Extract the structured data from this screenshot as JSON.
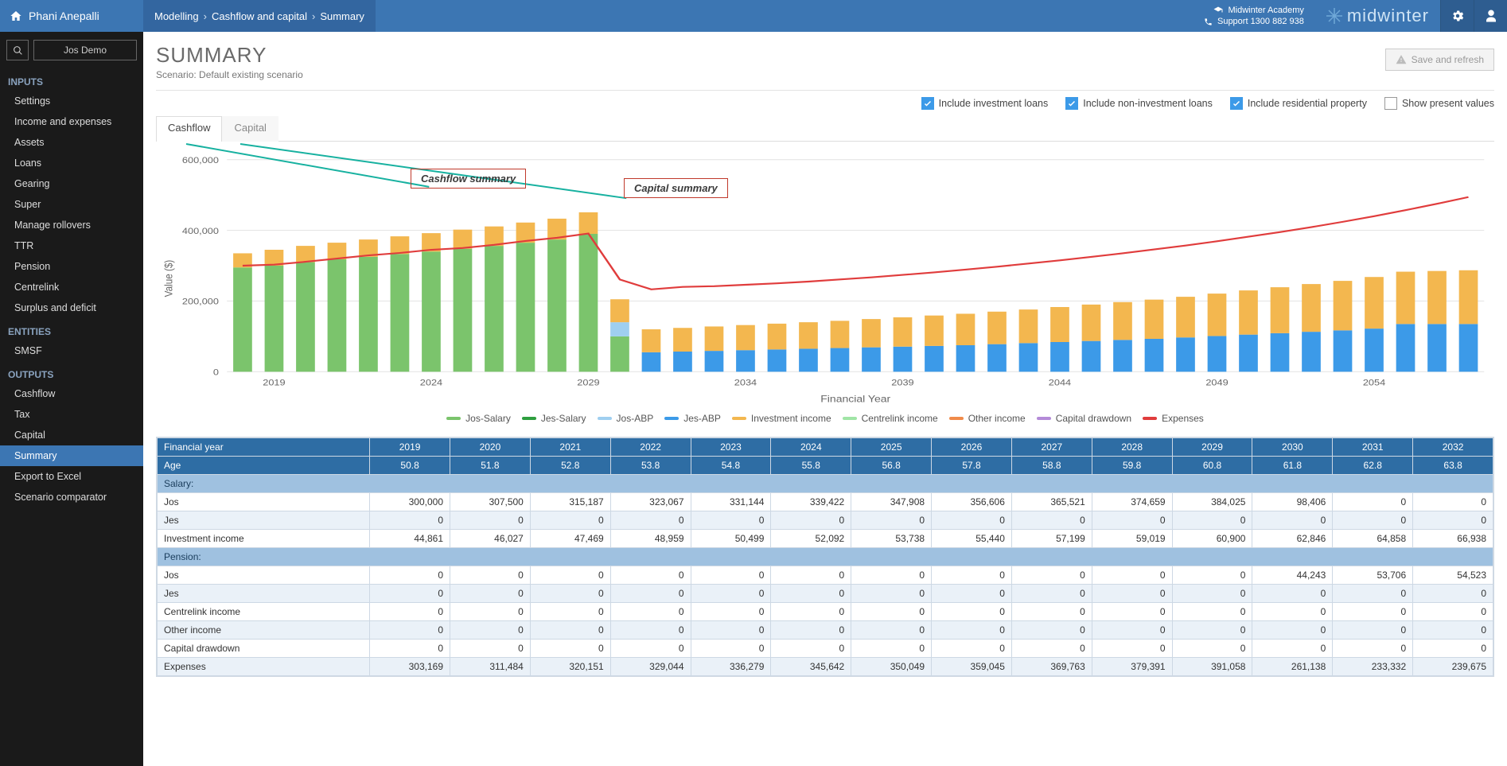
{
  "header": {
    "username": "Phani Anepalli",
    "breadcrumb": [
      "Modelling",
      "Cashflow and capital",
      "Summary"
    ],
    "academy": "Midwinter Academy",
    "support": "Support 1300 882 938",
    "brand": "midwinter"
  },
  "client": {
    "name": "Jos Demo"
  },
  "nav": {
    "sections": [
      {
        "title": "INPUTS",
        "items": [
          "Settings",
          "Income and expenses",
          "Assets",
          "Loans",
          "Gearing",
          "Super",
          "Manage rollovers",
          "TTR",
          "Pension",
          "Centrelink",
          "Surplus and deficit"
        ]
      },
      {
        "title": "ENTITIES",
        "items": [
          "SMSF"
        ]
      },
      {
        "title": "OUTPUTS",
        "items": [
          "Cashflow",
          "Tax",
          "Capital",
          "Summary",
          "Export to Excel",
          "Scenario comparator"
        ]
      }
    ],
    "active": "Summary"
  },
  "page": {
    "title": "SUMMARY",
    "scenario_label": "Scenario: Default existing scenario",
    "save_btn": "Save and refresh"
  },
  "checks": [
    {
      "label": "Include investment loans",
      "on": true
    },
    {
      "label": "Include non-investment loans",
      "on": true
    },
    {
      "label": "Include residential property",
      "on": true
    },
    {
      "label": "Show present values",
      "on": false
    }
  ],
  "tabs": {
    "items": [
      "Cashflow",
      "Capital"
    ],
    "active": "Cashflow"
  },
  "callouts": {
    "c1": "Cashflow summary",
    "c2": "Capital summary"
  },
  "chart": {
    "type": "stacked-bar-with-line",
    "ylabel": "Value ($)",
    "xlabel": "Financial Year",
    "ylim": [
      0,
      600000
    ],
    "ytick_step": 200000,
    "ytick_labels": [
      "0",
      "200,000",
      "400,000",
      "600,000"
    ],
    "years": [
      2018,
      2019,
      2020,
      2021,
      2022,
      2023,
      2024,
      2025,
      2026,
      2027,
      2028,
      2029,
      2030,
      2031,
      2032,
      2033,
      2034,
      2035,
      2036,
      2037,
      2038,
      2039,
      2040,
      2041,
      2042,
      2043,
      2044,
      2045,
      2046,
      2047,
      2048,
      2049,
      2050,
      2051,
      2052,
      2053,
      2054,
      2055,
      2056,
      2057
    ],
    "xticks": [
      2019,
      2024,
      2029,
      2034,
      2039,
      2044,
      2049,
      2054
    ],
    "colors": {
      "jos_salary": "#7bc46c",
      "jes_salary": "#2e9e3f",
      "jos_abp": "#9fcff0",
      "jes_abp": "#3c9ae8",
      "investment": "#f3b74f",
      "centrelink": "#a0e5a6",
      "other": "#f08b4a",
      "capital_drawdown": "#b48bd8",
      "expenses": "#e03c3c",
      "grid": "#e6e6e6",
      "axis": "#888"
    },
    "legend": [
      "Jos-Salary",
      "Jes-Salary",
      "Jos-ABP",
      "Jes-ABP",
      "Investment income",
      "Centrelink income",
      "Other income",
      "Capital drawdown",
      "Expenses"
    ],
    "legend_colors": [
      "#7bc46c",
      "#2e9e3f",
      "#9fcff0",
      "#3c9ae8",
      "#f3b74f",
      "#a0e5a6",
      "#f08b4a",
      "#b48bd8",
      "#e03c3c"
    ],
    "series": {
      "green": [
        295000,
        300000,
        310000,
        318000,
        325000,
        333000,
        340000,
        348000,
        356000,
        365000,
        374000,
        390000,
        100000,
        0,
        0,
        0,
        0,
        0,
        0,
        0,
        0,
        0,
        0,
        0,
        0,
        0,
        0,
        0,
        0,
        0,
        0,
        0,
        0,
        0,
        0,
        0,
        0,
        0,
        0,
        0
      ],
      "lightblue": [
        0,
        0,
        0,
        0,
        0,
        0,
        0,
        0,
        0,
        0,
        0,
        0,
        40000,
        0,
        0,
        0,
        0,
        0,
        0,
        0,
        0,
        0,
        0,
        0,
        0,
        0,
        0,
        0,
        0,
        0,
        0,
        0,
        0,
        0,
        0,
        0,
        0,
        0,
        0,
        0
      ],
      "blue": [
        0,
        0,
        0,
        0,
        0,
        0,
        0,
        0,
        0,
        0,
        0,
        0,
        0,
        55000,
        57000,
        59000,
        61000,
        63000,
        65000,
        67000,
        69000,
        71000,
        73000,
        75000,
        78000,
        81000,
        84000,
        87000,
        90000,
        93000,
        97000,
        101000,
        105000,
        109000,
        113000,
        117000,
        122000,
        135000,
        135000,
        135000
      ],
      "orange": [
        40000,
        45000,
        46000,
        47000,
        49000,
        50000,
        52000,
        54000,
        55000,
        57000,
        59000,
        61000,
        65000,
        65000,
        67000,
        69000,
        71000,
        73000,
        75000,
        77000,
        80000,
        83000,
        86000,
        89000,
        92000,
        95000,
        99000,
        103000,
        107000,
        111000,
        115000,
        120000,
        125000,
        130000,
        135000,
        140000,
        146000,
        148000,
        150000,
        152000
      ]
    },
    "expenses_line": [
      300000,
      303000,
      311000,
      320000,
      329000,
      336000,
      345000,
      350000,
      359000,
      370000,
      379000,
      391000,
      261000,
      233000,
      240000,
      242000,
      246000,
      250000,
      255000,
      261000,
      267000,
      274000,
      281000,
      289000,
      297000,
      306000,
      315000,
      325000,
      335000,
      346000,
      357000,
      369000,
      382000,
      395000,
      409000,
      424000,
      440000,
      457000,
      475000,
      494000
    ]
  },
  "table": {
    "header1_label": "Financial year",
    "header2_label": "Age",
    "years": [
      "2019",
      "2020",
      "2021",
      "2022",
      "2023",
      "2024",
      "2025",
      "2026",
      "2027",
      "2028",
      "2029",
      "2030",
      "2031",
      "2032"
    ],
    "ages": [
      "50.8",
      "51.8",
      "52.8",
      "53.8",
      "54.8",
      "55.8",
      "56.8",
      "57.8",
      "58.8",
      "59.8",
      "60.8",
      "61.8",
      "62.8",
      "63.8"
    ],
    "sections": [
      {
        "title": "Salary:",
        "rows": [
          {
            "label": "Jos",
            "vals": [
              "300,000",
              "307,500",
              "315,187",
              "323,067",
              "331,144",
              "339,422",
              "347,908",
              "356,606",
              "365,521",
              "374,659",
              "384,025",
              "98,406",
              "0",
              "0"
            ]
          },
          {
            "label": "Jes",
            "vals": [
              "0",
              "0",
              "0",
              "0",
              "0",
              "0",
              "0",
              "0",
              "0",
              "0",
              "0",
              "0",
              "0",
              "0"
            ]
          },
          {
            "label": "Investment income",
            "vals": [
              "44,861",
              "46,027",
              "47,469",
              "48,959",
              "50,499",
              "52,092",
              "53,738",
              "55,440",
              "57,199",
              "59,019",
              "60,900",
              "62,846",
              "64,858",
              "66,938"
            ]
          }
        ]
      },
      {
        "title": "Pension:",
        "rows": [
          {
            "label": "Jos",
            "vals": [
              "0",
              "0",
              "0",
              "0",
              "0",
              "0",
              "0",
              "0",
              "0",
              "0",
              "0",
              "44,243",
              "53,706",
              "54,523"
            ]
          },
          {
            "label": "Jes",
            "vals": [
              "0",
              "0",
              "0",
              "0",
              "0",
              "0",
              "0",
              "0",
              "0",
              "0",
              "0",
              "0",
              "0",
              "0"
            ]
          },
          {
            "label": "Centrelink income",
            "vals": [
              "0",
              "0",
              "0",
              "0",
              "0",
              "0",
              "0",
              "0",
              "0",
              "0",
              "0",
              "0",
              "0",
              "0"
            ]
          },
          {
            "label": "Other income",
            "vals": [
              "0",
              "0",
              "0",
              "0",
              "0",
              "0",
              "0",
              "0",
              "0",
              "0",
              "0",
              "0",
              "0",
              "0"
            ]
          },
          {
            "label": "Capital drawdown",
            "vals": [
              "0",
              "0",
              "0",
              "0",
              "0",
              "0",
              "0",
              "0",
              "0",
              "0",
              "0",
              "0",
              "0",
              "0"
            ]
          },
          {
            "label": "Expenses",
            "vals": [
              "303,169",
              "311,484",
              "320,151",
              "329,044",
              "336,279",
              "345,642",
              "350,049",
              "359,045",
              "369,763",
              "379,391",
              "391,058",
              "261,138",
              "233,332",
              "239,675"
            ]
          }
        ]
      }
    ]
  }
}
